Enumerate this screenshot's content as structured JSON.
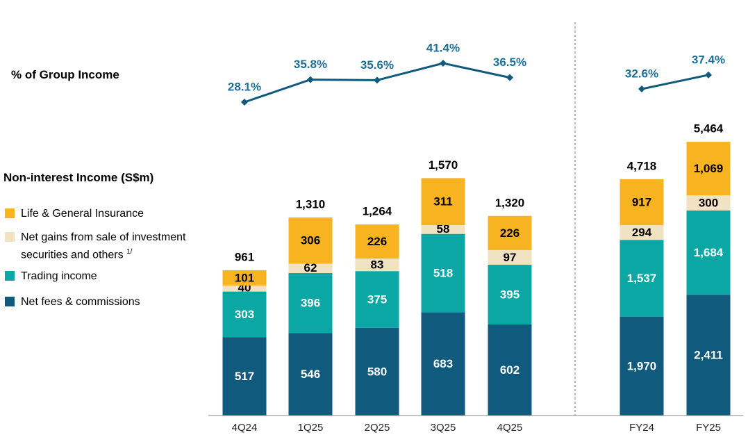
{
  "chart_data": {
    "type": "bar",
    "stacked": true,
    "title": "Non-interest Income (S$m)",
    "categories": [
      "4Q24",
      "1Q25",
      "2Q25",
      "3Q25",
      "4Q25",
      "FY24",
      "FY25"
    ],
    "series": [
      {
        "name": "Net fees & commissions",
        "color": "#0f5a7d",
        "label_color": "#ffffff",
        "values": [
          517,
          546,
          580,
          683,
          602,
          1970,
          2411
        ]
      },
      {
        "name": "Trading income",
        "color": "#0ba7a4",
        "label_color": "#ffffff",
        "values": [
          303,
          396,
          375,
          518,
          395,
          1537,
          1684
        ]
      },
      {
        "name": "Net gains from sale of investment securities and others",
        "note": "1/",
        "color": "#f1e2c2",
        "label_color": "#000000",
        "values": [
          40,
          62,
          83,
          58,
          97,
          294,
          300
        ]
      },
      {
        "name": "Life & General Insurance",
        "color": "#f7b320",
        "label_color": "#000000",
        "values": [
          101,
          306,
          226,
          311,
          226,
          917,
          1069
        ]
      }
    ],
    "totals": [
      "961",
      "1,310",
      "1,264",
      "1,570",
      "1,320",
      "4,718",
      "5,464"
    ],
    "value_labels": [
      [
        "517",
        "546",
        "580",
        "683",
        "602",
        "1,970",
        "2,411"
      ],
      [
        "303",
        "396",
        "375",
        "518",
        "395",
        "1,537",
        "1,684"
      ],
      [
        "40",
        "62",
        "83",
        "58",
        "97",
        "294",
        "300"
      ],
      [
        "101",
        "306",
        "226",
        "311",
        "226",
        "917",
        "1,069"
      ]
    ],
    "line": {
      "name": "% of Group Income",
      "color": "#0f5a7d",
      "groups": [
        {
          "categories": [
            "4Q24",
            "1Q25",
            "2Q25",
            "3Q25",
            "4Q25"
          ],
          "values": [
            28.1,
            35.8,
            35.6,
            41.4,
            36.5
          ],
          "labels": [
            "28.1%",
            "35.8%",
            "35.6%",
            "41.4%",
            "36.5%"
          ]
        },
        {
          "categories": [
            "FY24",
            "FY25"
          ],
          "values": [
            32.6,
            37.4
          ],
          "labels": [
            "32.6%",
            "37.4%"
          ]
        }
      ]
    },
    "legend_position": "left"
  },
  "legend": {
    "items": [
      {
        "label": "Life & General Insurance",
        "color": "#f7b320"
      },
      {
        "label_line1": "Net gains from sale of investment",
        "label_line2": "securities and others",
        "note": "1/",
        "color": "#f1e2c2"
      },
      {
        "label": "Trading income",
        "color": "#0ba7a4"
      },
      {
        "label": "Net fees & commissions",
        "color": "#0f5a7d"
      }
    ]
  },
  "headers": {
    "pct_label": "% of Group Income",
    "income_label": "Non-interest Income (S$m)"
  }
}
